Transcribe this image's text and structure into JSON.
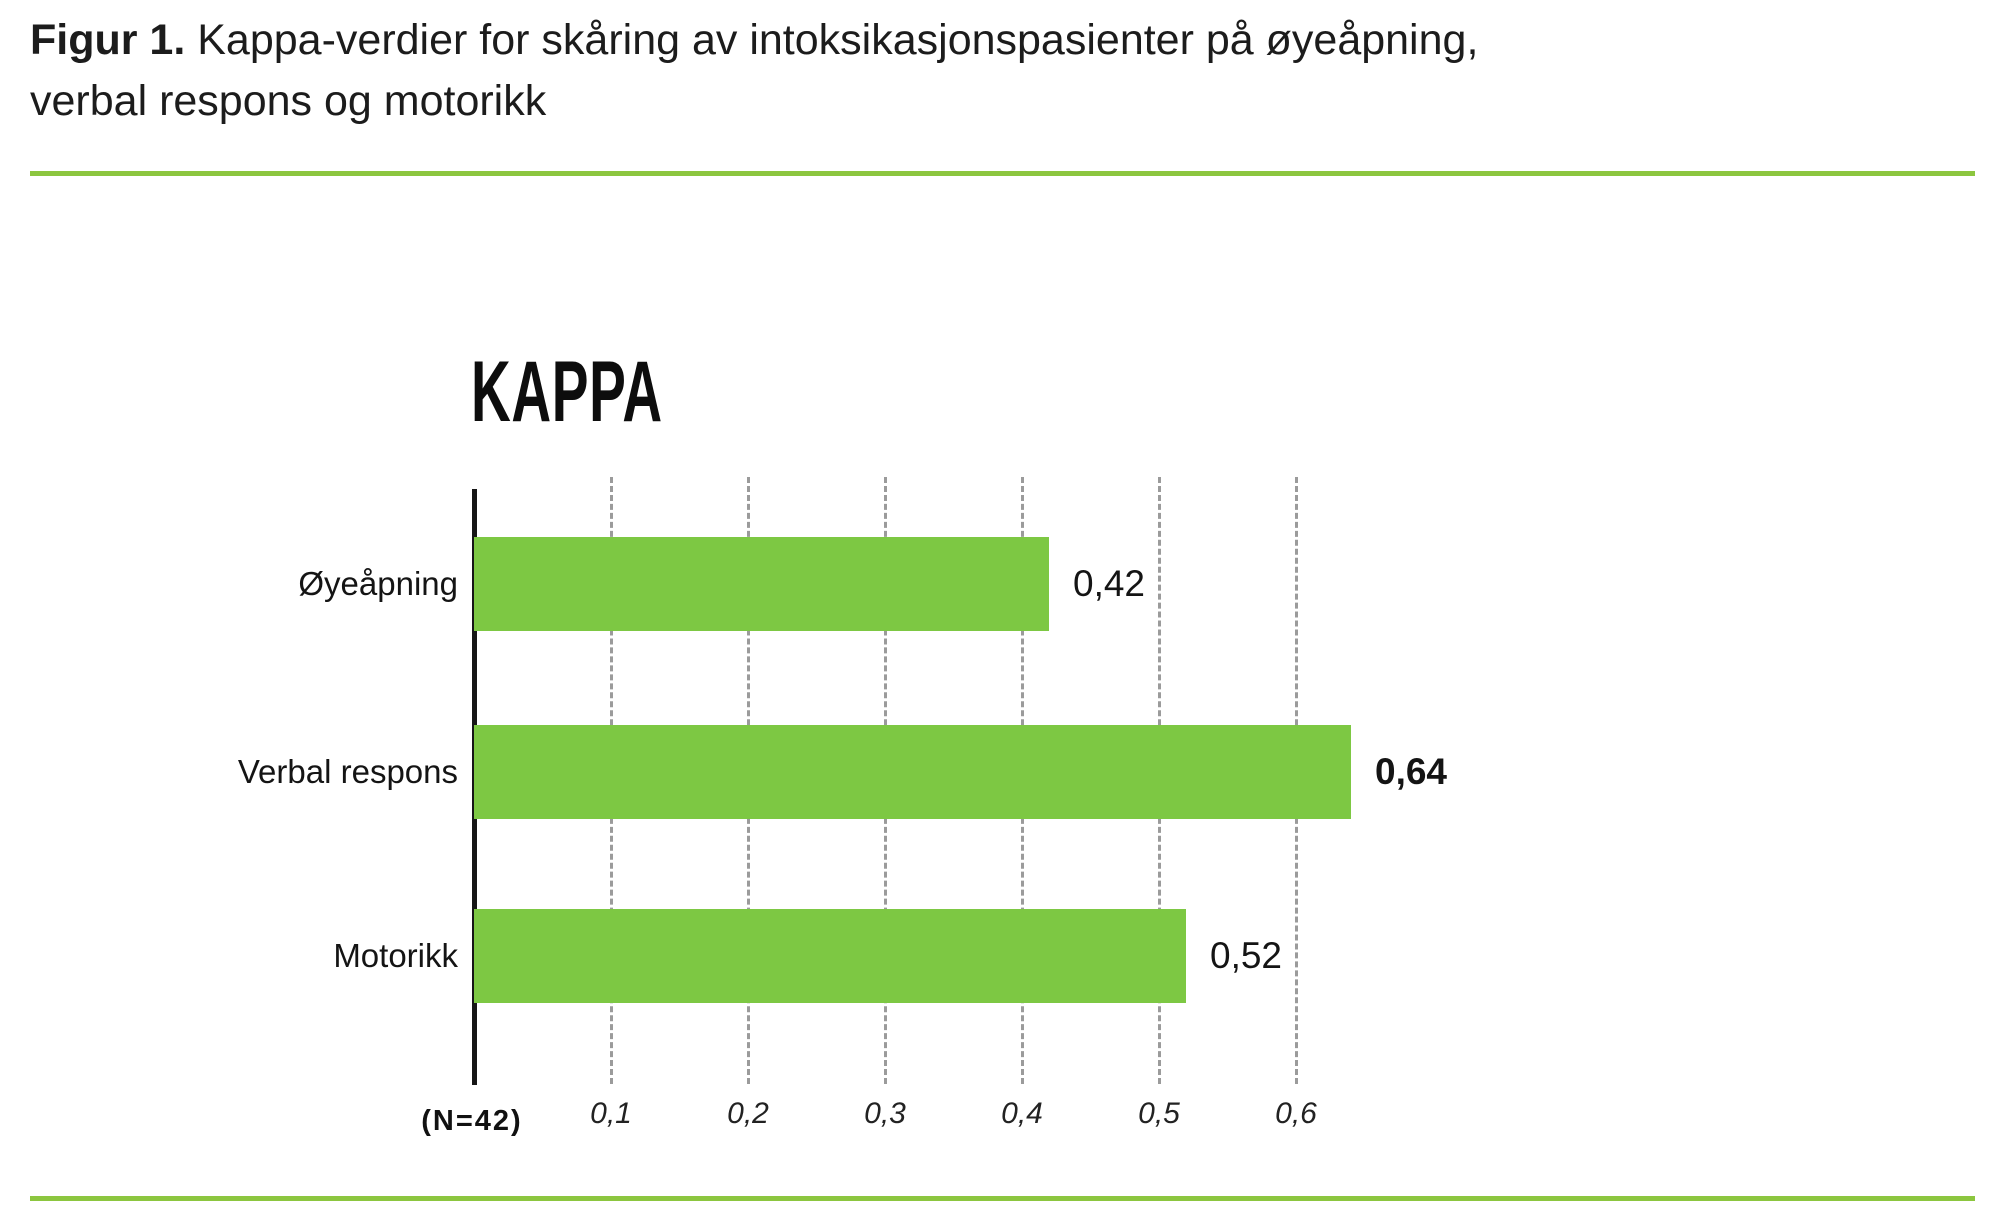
{
  "header": {
    "figure_label": "Figur 1.",
    "title_line1": "Kappa-verdier for skåring av intoksikasjonspasienter på øyeåpning,",
    "title_line2": "verbal respons og motorikk"
  },
  "colors": {
    "bar_green": "#7DC843",
    "rule_green": "#8CC63F",
    "axis_black": "#161616",
    "grid_gray": "#9b9b9b"
  },
  "chart_data": {
    "type": "bar",
    "orientation": "horizontal",
    "title": "KAPPA",
    "categories": [
      "Øyeåpning",
      "Verbal respons",
      "Motorikk"
    ],
    "values": [
      0.42,
      0.64,
      0.52
    ],
    "value_labels": [
      "0,42",
      "0,64",
      "0,52"
    ],
    "emphasized": [
      false,
      true,
      false
    ],
    "x_ticks": [
      0.1,
      0.2,
      0.3,
      0.4,
      0.5,
      0.6
    ],
    "x_tick_labels": [
      "0,1",
      "0,2",
      "0,3",
      "0,4",
      "0,5",
      "0,6"
    ],
    "xlim": [
      0,
      0.65
    ],
    "grid": "dashed-vertical",
    "sample_note": "(N=42)",
    "xlabel": "",
    "ylabel": ""
  }
}
